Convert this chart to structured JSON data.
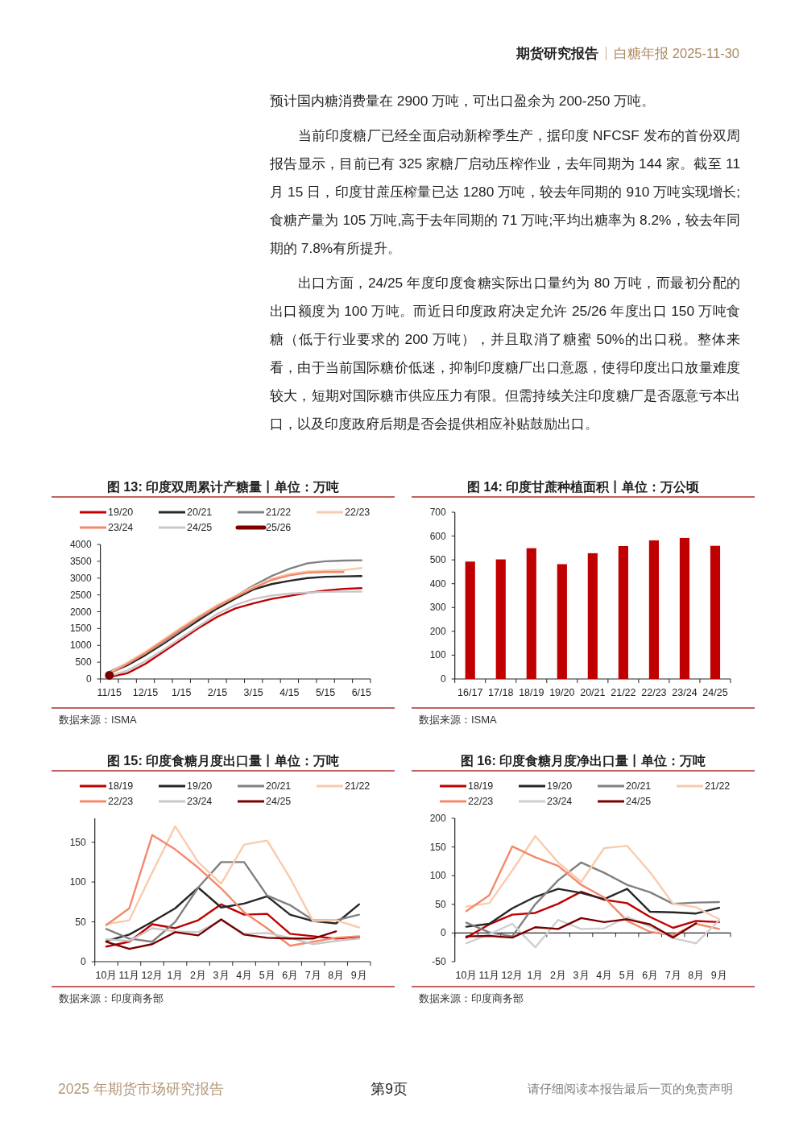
{
  "chart_data": [
    {
      "type": "other",
      "title": "期货研究报告",
      "subtitle": "白糖年报 2025-11-30",
      "annotations": [
        "预计国内糖消费量在 2900 万吨，可出口盈余为 200-250 万吨。",
        "当前印度糖厂已经全面启动新榨季生产，据印度 NFCSF 发布的首份双周报告显示，目前已有 325 家糖厂启动压榨作业，去年同期为 144 家。截至 11 月 15 日，印度甘蔗压榨量已达 1280 万吨，较去年同期的 910 万吨实现增长;食糖产量为 105 万吨,高于去年同期的 71 万吨;平均出糖率为 8.2%，较去年同期的 7.8%有所提升。",
        "出口方面，24/25 年度印度食糖实际出口量约为 80 万吨，而最初分配的出口额度为 100 万吨。而近日印度政府决定允许 25/26 年度出口 150 万吨食糖（低于行业要求的 200 万吨），并且取消了糖蜜 50%的出口税。整体来看，由于当前国际糖价低迷，抑制印度糖厂出口意愿，使得印度出口放量难度较大，短期对国际糖市供应压力有限。但需持续关注印度糖厂是否愿意亏本出口，以及印度政府后期是否会提供相应补贴鼓励出口。"
      ]
    },
    {
      "type": "line",
      "title": "图 13: 印度双周累计产糖量丨单位：万吨",
      "categories": [
        "11/15",
        null,
        "12/15",
        null,
        "1/15",
        null,
        "2/15",
        null,
        "3/15",
        null,
        "4/15",
        null,
        "5/15",
        null,
        "6/15"
      ],
      "series": [
        {
          "name": "19/20",
          "color": "#c00000",
          "values": [
            60,
            170,
            450,
            810,
            1170,
            1530,
            1850,
            2100,
            2250,
            2380,
            2470,
            2560,
            2630,
            2680,
            2700
          ]
        },
        {
          "name": "20/21",
          "color": "#262626",
          "values": [
            170,
            410,
            710,
            1050,
            1410,
            1760,
            2100,
            2390,
            2660,
            2820,
            2920,
            3000,
            3040,
            3050,
            3060
          ]
        },
        {
          "name": "21/22",
          "color": "#808080",
          "values": [
            210,
            470,
            760,
            1090,
            1450,
            1820,
            2150,
            2460,
            2780,
            3060,
            3280,
            3440,
            3500,
            3520,
            3530
          ]
        },
        {
          "name": "22/23",
          "color": "#f8cbad",
          "values": [
            170,
            490,
            810,
            1170,
            1530,
            1880,
            2200,
            2470,
            2740,
            2980,
            3120,
            3200,
            3220,
            3240,
            3300
          ]
        },
        {
          "name": "23/24",
          "color": "#f4896b",
          "values": [
            150,
            450,
            770,
            1130,
            1490,
            1840,
            2160,
            2440,
            2700,
            2940,
            3080,
            3160,
            3180,
            3180,
            null
          ]
        },
        {
          "name": "24/25",
          "color": "#c8c8c8",
          "values": [
            90,
            250,
            530,
            870,
            1230,
            1580,
            1940,
            2200,
            2380,
            2480,
            2540,
            2570,
            2590,
            2600,
            2600
          ]
        },
        {
          "name": "25/26",
          "color": "#7b0000",
          "type": "scatter",
          "values": [
            110,
            null,
            null,
            null,
            null,
            null,
            null,
            null,
            null,
            null,
            null,
            null,
            null,
            null,
            null
          ]
        }
      ],
      "ylim": [
        0,
        4000
      ],
      "yticks": [
        0,
        500,
        1000,
        1500,
        2000,
        2500,
        3000,
        3500,
        4000
      ],
      "legend": "top",
      "annotations": [
        "数据来源：ISMA"
      ]
    },
    {
      "type": "bar",
      "title": "图 14: 印度甘蔗种植面积丨单位：万公顷",
      "categories": [
        "16/17",
        "17/18",
        "18/19",
        "19/20",
        "20/21",
        "21/22",
        "22/23",
        "23/24",
        "24/25"
      ],
      "values": [
        493,
        502,
        549,
        482,
        528,
        558,
        582,
        592,
        559
      ],
      "color": "#c00000",
      "ylim": [
        0,
        700
      ],
      "yticks": [
        0,
        100,
        200,
        300,
        400,
        500,
        600,
        700
      ],
      "annotations": [
        "数据来源：ISMA"
      ]
    },
    {
      "type": "line",
      "title": "图 15: 印度食糖月度出口量丨单位：万吨",
      "categories": [
        "10月",
        "11月",
        "12月",
        "1月",
        "2月",
        "3月",
        "4月",
        "5月",
        "6月",
        "7月",
        "8月",
        "9月"
      ],
      "series": [
        {
          "name": "18/19",
          "color": "#c00000",
          "values": [
            19,
            25,
            47,
            42,
            52,
            72,
            59,
            60,
            35,
            32,
            29,
            31
          ]
        },
        {
          "name": "19/20",
          "color": "#262626",
          "values": [
            26,
            34,
            50,
            67,
            93,
            68,
            73,
            82,
            59,
            51,
            48,
            72
          ]
        },
        {
          "name": "20/21",
          "color": "#808080",
          "values": [
            41,
            29,
            25,
            50,
            93,
            125,
            125,
            83,
            71,
            52,
            52,
            59
          ]
        },
        {
          "name": "21/22",
          "color": "#f8cbad",
          "values": [
            47,
            52,
            112,
            170,
            125,
            98,
            147,
            152,
            105,
            51,
            52,
            43
          ]
        },
        {
          "name": "22/23",
          "color": "#f4896b",
          "values": [
            46,
            67,
            159,
            141,
            118,
            92,
            62,
            42,
            20,
            25,
            30,
            32
          ]
        },
        {
          "name": "23/24",
          "color": "#c8c8c8",
          "values": [
            28,
            26,
            42,
            38,
            37,
            52,
            35,
            36,
            30,
            22,
            26,
            29
          ]
        },
        {
          "name": "24/25",
          "color": "#7b0000",
          "values": [
            25,
            16,
            22,
            37,
            33,
            53,
            34,
            30,
            29,
            29,
            38,
            null
          ]
        }
      ],
      "ylim": [
        0,
        180
      ],
      "yticks": [
        0,
        50,
        100,
        150
      ],
      "legend": "top",
      "annotations": [
        "数据来源：印度商务部"
      ]
    },
    {
      "type": "line",
      "title": "图 16: 印度食糖月度净出口量丨单位：万吨",
      "categories": [
        "10月",
        "11月",
        "12月",
        "1月",
        "2月",
        "3月",
        "4月",
        "5月",
        "6月",
        "7月",
        "8月",
        "9月"
      ],
      "series": [
        {
          "name": "18/19",
          "color": "#c00000",
          "values": [
            -8,
            15,
            32,
            35,
            51,
            72,
            58,
            52,
            28,
            9,
            21,
            19
          ]
        },
        {
          "name": "19/20",
          "color": "#262626",
          "values": [
            11,
            16,
            43,
            63,
            77,
            70,
            59,
            77,
            37,
            36,
            34,
            44
          ]
        },
        {
          "name": "20/21",
          "color": "#808080",
          "values": [
            18,
            1,
            -6,
            50,
            92,
            123,
            105,
            84,
            71,
            51,
            53,
            54
          ]
        },
        {
          "name": "21/22",
          "color": "#f8cbad",
          "values": [
            46,
            52,
            109,
            169,
            123,
            89,
            148,
            152,
            106,
            51,
            45,
            24
          ]
        },
        {
          "name": "22/23",
          "color": "#f4896b",
          "values": [
            38,
            66,
            151,
            132,
            117,
            84,
            62,
            21,
            2,
            -4,
            16,
            7
          ]
        },
        {
          "name": "23/24",
          "color": "#cfcfcf",
          "values": [
            -18,
            -2,
            16,
            -25,
            23,
            7,
            8,
            28,
            11,
            -9,
            -18,
            22
          ]
        },
        {
          "name": "24/25",
          "color": "#7b0000",
          "values": [
            -6,
            -5,
            -8,
            10,
            7,
            26,
            19,
            24,
            15,
            -8,
            17,
            null
          ]
        }
      ],
      "ylim": [
        -50,
        200
      ],
      "yticks": [
        -50,
        0,
        50,
        100,
        150,
        200
      ],
      "legend": "top",
      "annotations": [
        "数据来源：印度商务部"
      ]
    },
    {
      "type": "other",
      "annotations": [
        "2025 年期货市场研究报告",
        "第9页",
        "请仔细阅读本报告最后一页的免责声明"
      ]
    }
  ]
}
